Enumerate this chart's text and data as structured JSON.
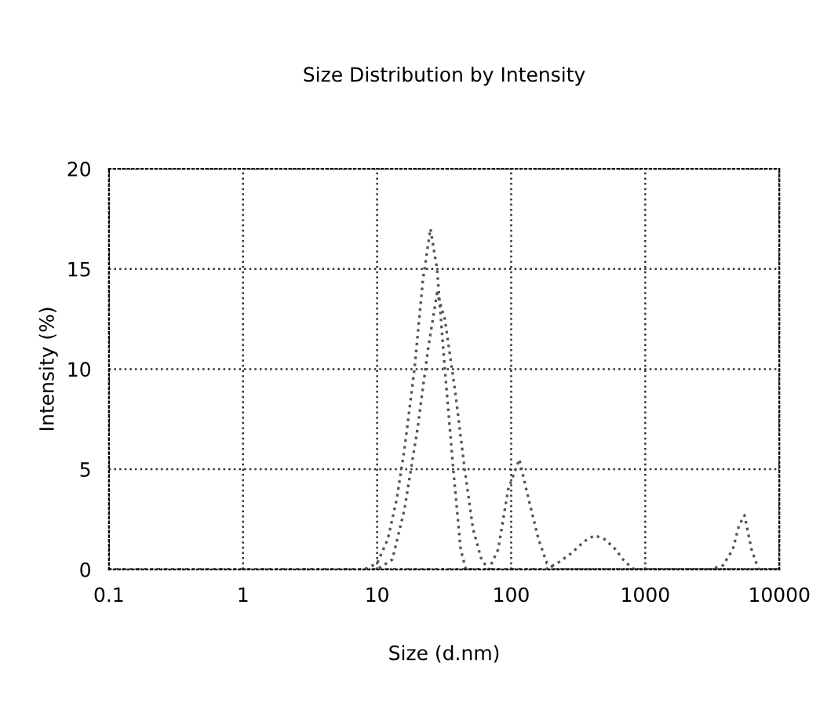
{
  "chart_data": {
    "type": "line",
    "title": "Size Distribution by Intensity",
    "xlabel": "Size (d.nm)",
    "ylabel": "Intensity (%)",
    "log": "x",
    "xlim": [
      0.1,
      10000
    ],
    "xticks": [
      {
        "value": 0.1,
        "label": "0.1"
      },
      {
        "value": 1,
        "label": "1"
      },
      {
        "value": 10,
        "label": "10"
      },
      {
        "value": 100,
        "label": "100"
      },
      {
        "value": 1000,
        "label": "1000"
      },
      {
        "value": 10000,
        "label": "10000"
      }
    ],
    "ylim": [
      0,
      20
    ],
    "yticks": [
      0,
      5,
      10,
      15,
      20
    ],
    "grid": true,
    "line_style": "dotted",
    "marker": "none",
    "legend": false,
    "series": [
      {
        "color": "#555555",
        "x": [
          0.1,
          8,
          10,
          12,
          14,
          16,
          19,
          22,
          25,
          28,
          32,
          37,
          42,
          46,
          100,
          10000
        ],
        "values": [
          0,
          0,
          0.3,
          1.5,
          3.5,
          6,
          10,
          14.5,
          17,
          15,
          10,
          5,
          1,
          0,
          0,
          0
        ]
      },
      {
        "color": "#555555",
        "x": [
          0.1,
          10,
          13,
          16,
          20,
          24,
          28,
          32,
          38,
          45,
          52,
          60,
          68,
          80,
          95,
          115,
          135,
          160,
          185,
          220,
          10000
        ],
        "values": [
          0,
          0,
          0.5,
          3,
          7,
          11,
          13.8,
          12.5,
          9,
          5,
          2,
          0.5,
          0,
          1,
          4,
          5.5,
          3.5,
          1.5,
          0.3,
          0,
          0
        ]
      },
      {
        "color": "#555555",
        "x": [
          0.1,
          180,
          220,
          280,
          350,
          420,
          500,
          600,
          700,
          830,
          3000,
          3800,
          4500,
          5000,
          5500,
          6200,
          7000,
          10000
        ],
        "values": [
          0,
          0,
          0.3,
          0.8,
          1.4,
          1.7,
          1.5,
          1,
          0.4,
          0,
          0,
          0.2,
          1,
          2.2,
          2.7,
          1,
          0,
          0
        ]
      }
    ]
  }
}
